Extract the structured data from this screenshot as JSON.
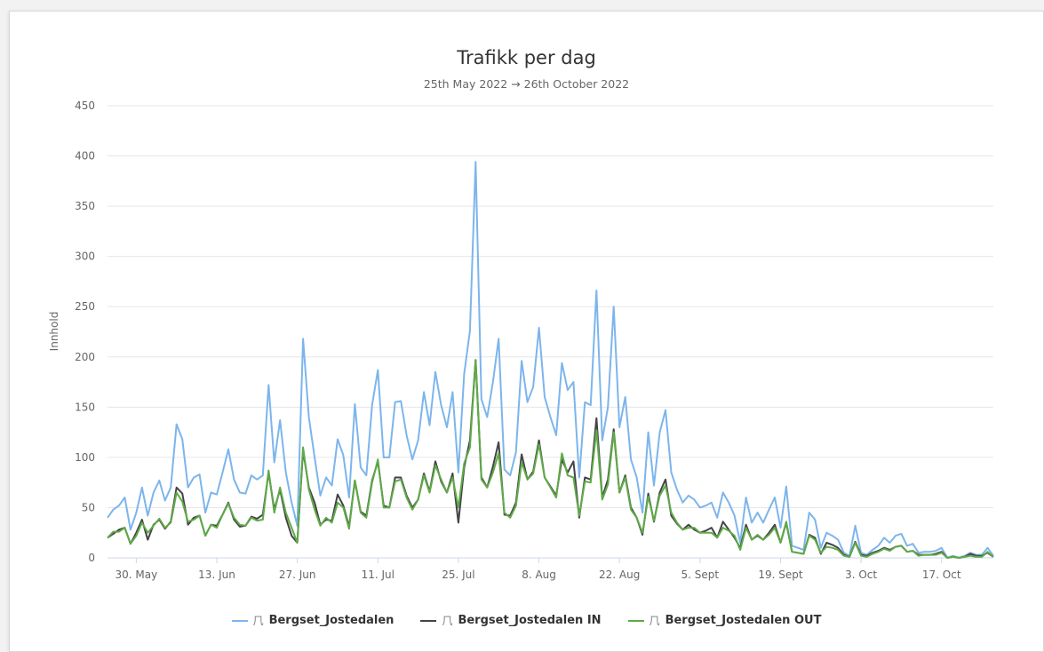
{
  "chart_data": {
    "type": "line",
    "title": "Trafikk per dag",
    "subtitle": "25th May 2022 → 26th October 2022",
    "ylabel": "Innhold",
    "xlabel": "",
    "ylim": [
      0,
      450
    ],
    "yticks": [
      0,
      50,
      100,
      150,
      200,
      250,
      300,
      350,
      400,
      450
    ],
    "x_start": "2022-05-25",
    "xticks": [
      {
        "date": "2022-05-30",
        "label": "30. May"
      },
      {
        "date": "2022-06-13",
        "label": "13. Jun"
      },
      {
        "date": "2022-06-27",
        "label": "27. Jun"
      },
      {
        "date": "2022-07-11",
        "label": "11. Jul"
      },
      {
        "date": "2022-07-25",
        "label": "25. Jul"
      },
      {
        "date": "2022-08-08",
        "label": "8. Aug"
      },
      {
        "date": "2022-08-22",
        "label": "22. Aug"
      },
      {
        "date": "2022-09-05",
        "label": "5. Sept"
      },
      {
        "date": "2022-09-19",
        "label": "19. Sept"
      },
      {
        "date": "2022-10-03",
        "label": "3. Oct"
      },
      {
        "date": "2022-10-17",
        "label": "17. Oct"
      }
    ],
    "grid": true,
    "legend_position": "bottom",
    "series": [
      {
        "name": "Bergset_Jostedalen",
        "color": "#7cb5ec",
        "values": [
          40,
          48,
          52,
          60,
          28,
          45,
          70,
          42,
          65,
          77,
          57,
          70,
          133,
          118,
          70,
          80,
          83,
          45,
          65,
          63,
          85,
          108,
          78,
          65,
          64,
          82,
          78,
          82,
          172,
          95,
          137,
          85,
          55,
          32,
          218,
          140,
          100,
          62,
          80,
          72,
          118,
          102,
          60,
          153,
          90,
          82,
          152,
          187,
          100,
          100,
          155,
          156,
          122,
          98,
          117,
          165,
          132,
          185,
          152,
          130,
          165,
          85,
          183,
          226,
          394,
          158,
          140,
          175,
          218,
          88,
          82,
          105,
          196,
          155,
          170,
          229,
          160,
          140,
          122,
          194,
          167,
          175,
          80,
          155,
          152,
          266,
          117,
          150,
          250,
          130,
          160,
          98,
          80,
          45,
          125,
          72,
          125,
          147,
          85,
          68,
          55,
          62,
          58,
          50,
          52,
          55,
          40,
          65,
          55,
          42,
          15,
          60,
          35,
          45,
          35,
          48,
          60,
          30,
          71,
          12,
          10,
          8,
          45,
          38,
          10,
          25,
          22,
          18,
          5,
          2,
          32,
          5,
          3,
          8,
          12,
          20,
          15,
          22,
          24,
          12,
          14,
          5,
          6,
          6,
          7,
          10,
          0,
          2,
          0,
          2,
          5,
          3,
          3,
          10,
          2
        ]
      },
      {
        "name": "Bergset_Jostedalen IN",
        "color": "#434348",
        "values": [
          20,
          24,
          28,
          30,
          14,
          25,
          38,
          18,
          33,
          38,
          29,
          36,
          70,
          64,
          33,
          40,
          42,
          22,
          33,
          32,
          43,
          55,
          38,
          31,
          32,
          41,
          39,
          43,
          85,
          48,
          68,
          40,
          22,
          15,
          107,
          70,
          55,
          33,
          38,
          37,
          63,
          52,
          31,
          77,
          46,
          42,
          77,
          96,
          52,
          50,
          80,
          80,
          62,
          50,
          58,
          84,
          66,
          96,
          76,
          65,
          84,
          35,
          90,
          117,
          197,
          80,
          70,
          91,
          115,
          43,
          42,
          55,
          103,
          78,
          86,
          117,
          80,
          71,
          62,
          98,
          85,
          96,
          40,
          80,
          78,
          139,
          60,
          78,
          128,
          65,
          82,
          50,
          40,
          23,
          64,
          36,
          65,
          78,
          42,
          34,
          28,
          33,
          28,
          25,
          27,
          30,
          20,
          36,
          28,
          20,
          10,
          33,
          18,
          22,
          18,
          25,
          33,
          15,
          35,
          6,
          5,
          4,
          23,
          20,
          4,
          15,
          13,
          10,
          3,
          1,
          16,
          3,
          2,
          5,
          7,
          10,
          8,
          11,
          12,
          6,
          7,
          3,
          3,
          3,
          4,
          6,
          0,
          1,
          0,
          1,
          4,
          2,
          2,
          5,
          1
        ]
      },
      {
        "name": "Bergset_Jostedalen OUT",
        "color": "#5faa46",
        "values": [
          20,
          26,
          26,
          30,
          14,
          22,
          35,
          25,
          32,
          39,
          30,
          35,
          65,
          56,
          36,
          38,
          42,
          22,
          33,
          30,
          43,
          54,
          40,
          33,
          32,
          40,
          37,
          38,
          87,
          45,
          70,
          45,
          30,
          15,
          110,
          68,
          48,
          32,
          40,
          35,
          55,
          50,
          29,
          77,
          45,
          40,
          75,
          98,
          50,
          50,
          76,
          78,
          60,
          48,
          58,
          82,
          65,
          92,
          78,
          65,
          80,
          50,
          94,
          110,
          197,
          78,
          70,
          85,
          104,
          45,
          40,
          52,
          95,
          78,
          84,
          113,
          80,
          70,
          60,
          104,
          82,
          80,
          42,
          76,
          75,
          127,
          58,
          73,
          125,
          65,
          80,
          48,
          40,
          25,
          61,
          37,
          62,
          72,
          45,
          35,
          28,
          30,
          30,
          25,
          25,
          25,
          20,
          30,
          27,
          22,
          8,
          30,
          18,
          23,
          18,
          23,
          30,
          15,
          36,
          6,
          5,
          4,
          22,
          18,
          5,
          11,
          10,
          8,
          2,
          1,
          15,
          2,
          1,
          4,
          6,
          9,
          7,
          11,
          12,
          6,
          7,
          2,
          3,
          3,
          3,
          5,
          0,
          1,
          0,
          1,
          2,
          1,
          1,
          6,
          1
        ]
      }
    ]
  }
}
